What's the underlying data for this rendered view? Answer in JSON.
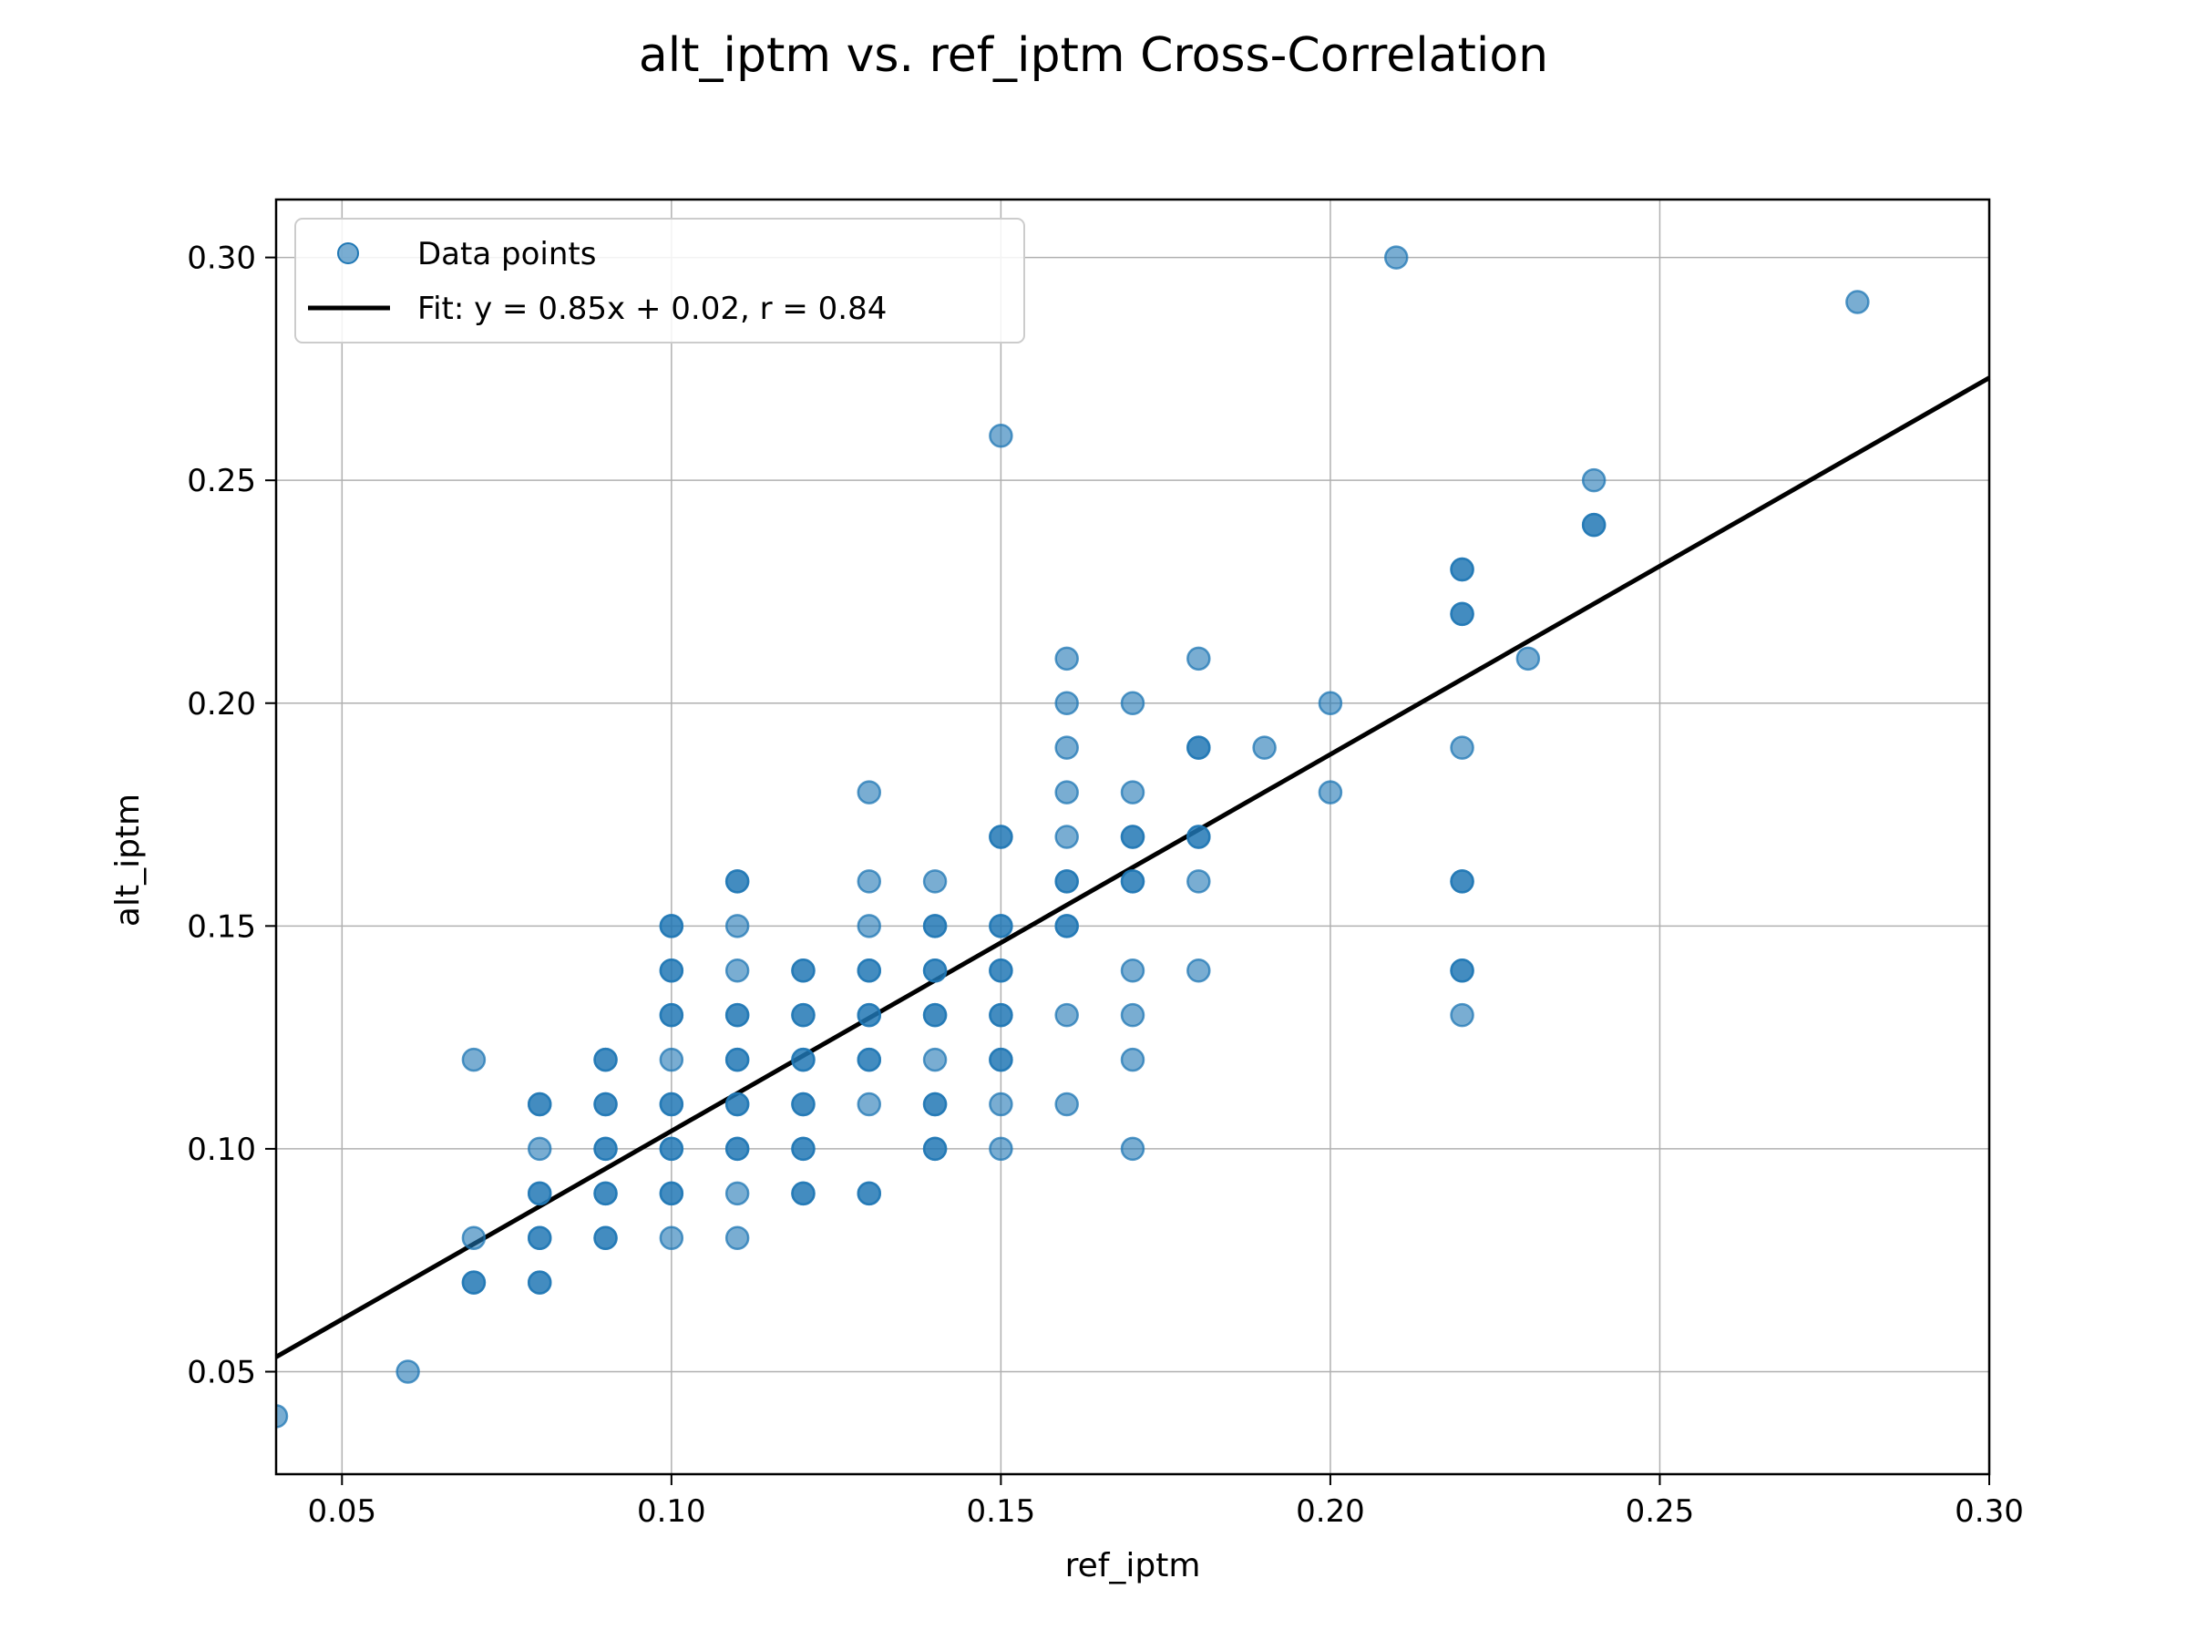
{
  "chart_data": {
    "type": "scatter",
    "title": "alt_iptm vs. ref_iptm Cross-Correlation",
    "xlabel": "ref_iptm",
    "ylabel": "alt_iptm",
    "xlim": [
      0.04,
      0.3
    ],
    "ylim": [
      0.027,
      0.313
    ],
    "xticks": [
      "0.05",
      "0.10",
      "0.15",
      "0.20",
      "0.25",
      "0.30"
    ],
    "yticks": [
      "0.05",
      "0.10",
      "0.15",
      "0.20",
      "0.25",
      "0.30"
    ],
    "grid": true,
    "legend_position": "top-left",
    "point_color": "#1f77b4",
    "fit_color": "#000000",
    "series": [
      {
        "name": "Data points",
        "points": [
          [
            0.04,
            0.04
          ],
          [
            0.06,
            0.05
          ],
          [
            0.07,
            0.07
          ],
          [
            0.07,
            0.07
          ],
          [
            0.07,
            0.08
          ],
          [
            0.07,
            0.12
          ],
          [
            0.08,
            0.07
          ],
          [
            0.08,
            0.07
          ],
          [
            0.08,
            0.08
          ],
          [
            0.08,
            0.08
          ],
          [
            0.08,
            0.09
          ],
          [
            0.08,
            0.09
          ],
          [
            0.08,
            0.1
          ],
          [
            0.08,
            0.11
          ],
          [
            0.08,
            0.11
          ],
          [
            0.09,
            0.08
          ],
          [
            0.09,
            0.08
          ],
          [
            0.09,
            0.09
          ],
          [
            0.09,
            0.09
          ],
          [
            0.09,
            0.1
          ],
          [
            0.09,
            0.1
          ],
          [
            0.09,
            0.11
          ],
          [
            0.09,
            0.11
          ],
          [
            0.09,
            0.12
          ],
          [
            0.09,
            0.12
          ],
          [
            0.1,
            0.08
          ],
          [
            0.1,
            0.09
          ],
          [
            0.1,
            0.09
          ],
          [
            0.1,
            0.1
          ],
          [
            0.1,
            0.1
          ],
          [
            0.1,
            0.11
          ],
          [
            0.1,
            0.11
          ],
          [
            0.1,
            0.12
          ],
          [
            0.1,
            0.13
          ],
          [
            0.1,
            0.13
          ],
          [
            0.1,
            0.14
          ],
          [
            0.1,
            0.14
          ],
          [
            0.1,
            0.15
          ],
          [
            0.1,
            0.15
          ],
          [
            0.11,
            0.08
          ],
          [
            0.11,
            0.09
          ],
          [
            0.11,
            0.1
          ],
          [
            0.11,
            0.1
          ],
          [
            0.11,
            0.11
          ],
          [
            0.11,
            0.11
          ],
          [
            0.11,
            0.12
          ],
          [
            0.11,
            0.12
          ],
          [
            0.11,
            0.13
          ],
          [
            0.11,
            0.13
          ],
          [
            0.11,
            0.14
          ],
          [
            0.11,
            0.15
          ],
          [
            0.11,
            0.16
          ],
          [
            0.11,
            0.16
          ],
          [
            0.12,
            0.09
          ],
          [
            0.12,
            0.09
          ],
          [
            0.12,
            0.1
          ],
          [
            0.12,
            0.1
          ],
          [
            0.12,
            0.11
          ],
          [
            0.12,
            0.11
          ],
          [
            0.12,
            0.12
          ],
          [
            0.12,
            0.12
          ],
          [
            0.12,
            0.13
          ],
          [
            0.12,
            0.13
          ],
          [
            0.12,
            0.14
          ],
          [
            0.12,
            0.14
          ],
          [
            0.13,
            0.09
          ],
          [
            0.13,
            0.09
          ],
          [
            0.13,
            0.11
          ],
          [
            0.13,
            0.12
          ],
          [
            0.13,
            0.12
          ],
          [
            0.13,
            0.13
          ],
          [
            0.13,
            0.13
          ],
          [
            0.13,
            0.14
          ],
          [
            0.13,
            0.14
          ],
          [
            0.13,
            0.15
          ],
          [
            0.13,
            0.16
          ],
          [
            0.13,
            0.18
          ],
          [
            0.14,
            0.1
          ],
          [
            0.14,
            0.1
          ],
          [
            0.14,
            0.11
          ],
          [
            0.14,
            0.11
          ],
          [
            0.14,
            0.12
          ],
          [
            0.14,
            0.13
          ],
          [
            0.14,
            0.13
          ],
          [
            0.14,
            0.14
          ],
          [
            0.14,
            0.14
          ],
          [
            0.14,
            0.15
          ],
          [
            0.14,
            0.15
          ],
          [
            0.14,
            0.16
          ],
          [
            0.15,
            0.1
          ],
          [
            0.15,
            0.11
          ],
          [
            0.15,
            0.12
          ],
          [
            0.15,
            0.12
          ],
          [
            0.15,
            0.13
          ],
          [
            0.15,
            0.13
          ],
          [
            0.15,
            0.14
          ],
          [
            0.15,
            0.14
          ],
          [
            0.15,
            0.15
          ],
          [
            0.15,
            0.15
          ],
          [
            0.15,
            0.17
          ],
          [
            0.15,
            0.17
          ],
          [
            0.15,
            0.26
          ],
          [
            0.16,
            0.11
          ],
          [
            0.16,
            0.13
          ],
          [
            0.16,
            0.15
          ],
          [
            0.16,
            0.15
          ],
          [
            0.16,
            0.16
          ],
          [
            0.16,
            0.16
          ],
          [
            0.16,
            0.17
          ],
          [
            0.16,
            0.18
          ],
          [
            0.16,
            0.19
          ],
          [
            0.16,
            0.2
          ],
          [
            0.16,
            0.21
          ],
          [
            0.17,
            0.1
          ],
          [
            0.17,
            0.12
          ],
          [
            0.17,
            0.13
          ],
          [
            0.17,
            0.14
          ],
          [
            0.17,
            0.16
          ],
          [
            0.17,
            0.16
          ],
          [
            0.17,
            0.17
          ],
          [
            0.17,
            0.17
          ],
          [
            0.17,
            0.18
          ],
          [
            0.17,
            0.2
          ],
          [
            0.18,
            0.14
          ],
          [
            0.18,
            0.16
          ],
          [
            0.18,
            0.17
          ],
          [
            0.18,
            0.17
          ],
          [
            0.18,
            0.19
          ],
          [
            0.18,
            0.19
          ],
          [
            0.18,
            0.21
          ],
          [
            0.19,
            0.19
          ],
          [
            0.2,
            0.18
          ],
          [
            0.2,
            0.2
          ],
          [
            0.21,
            0.3
          ],
          [
            0.22,
            0.13
          ],
          [
            0.22,
            0.14
          ],
          [
            0.22,
            0.14
          ],
          [
            0.22,
            0.16
          ],
          [
            0.22,
            0.16
          ],
          [
            0.22,
            0.19
          ],
          [
            0.22,
            0.22
          ],
          [
            0.22,
            0.22
          ],
          [
            0.22,
            0.23
          ],
          [
            0.22,
            0.23
          ],
          [
            0.23,
            0.21
          ],
          [
            0.24,
            0.24
          ],
          [
            0.24,
            0.24
          ],
          [
            0.24,
            0.25
          ],
          [
            0.28,
            0.29
          ]
        ]
      }
    ],
    "fit": {
      "label": "Fit: y = 0.85x + 0.02,  r = 0.84",
      "slope": 0.845,
      "intercept": 0.0195
    }
  }
}
